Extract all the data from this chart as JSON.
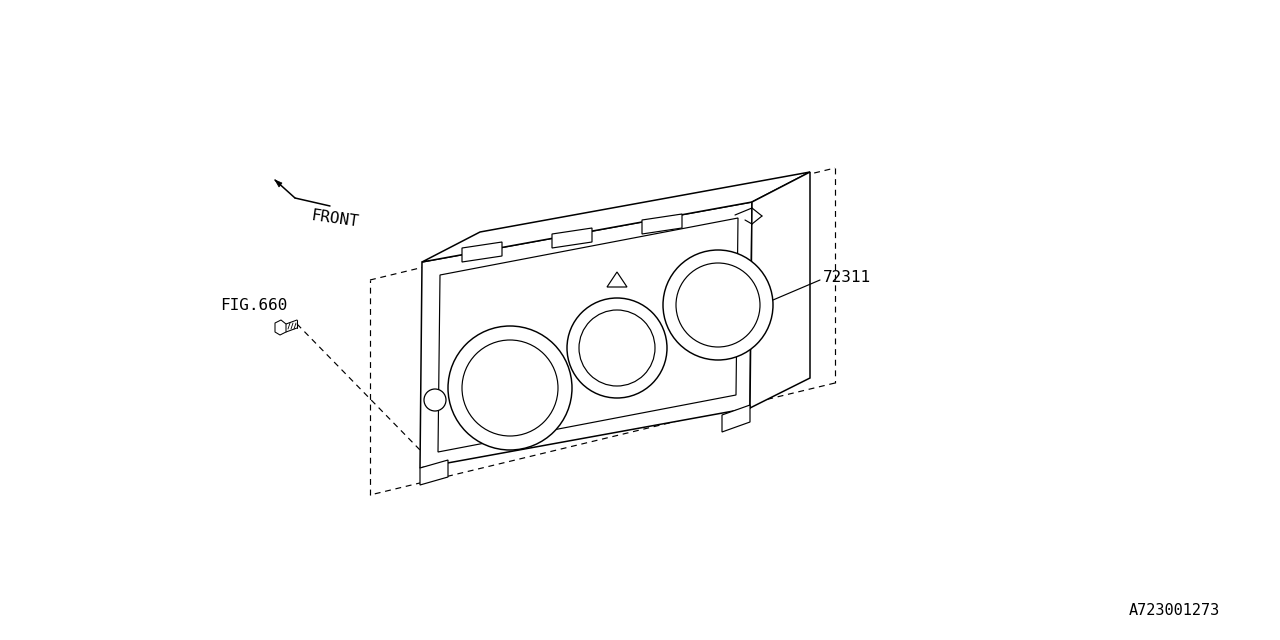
{
  "bg_color": "#ffffff",
  "line_color": "#000000",
  "text_color": "#000000",
  "part_number": "72311",
  "fig_ref": "FIG.660",
  "diagram_id": "A723001273",
  "front_label": "FRONT"
}
